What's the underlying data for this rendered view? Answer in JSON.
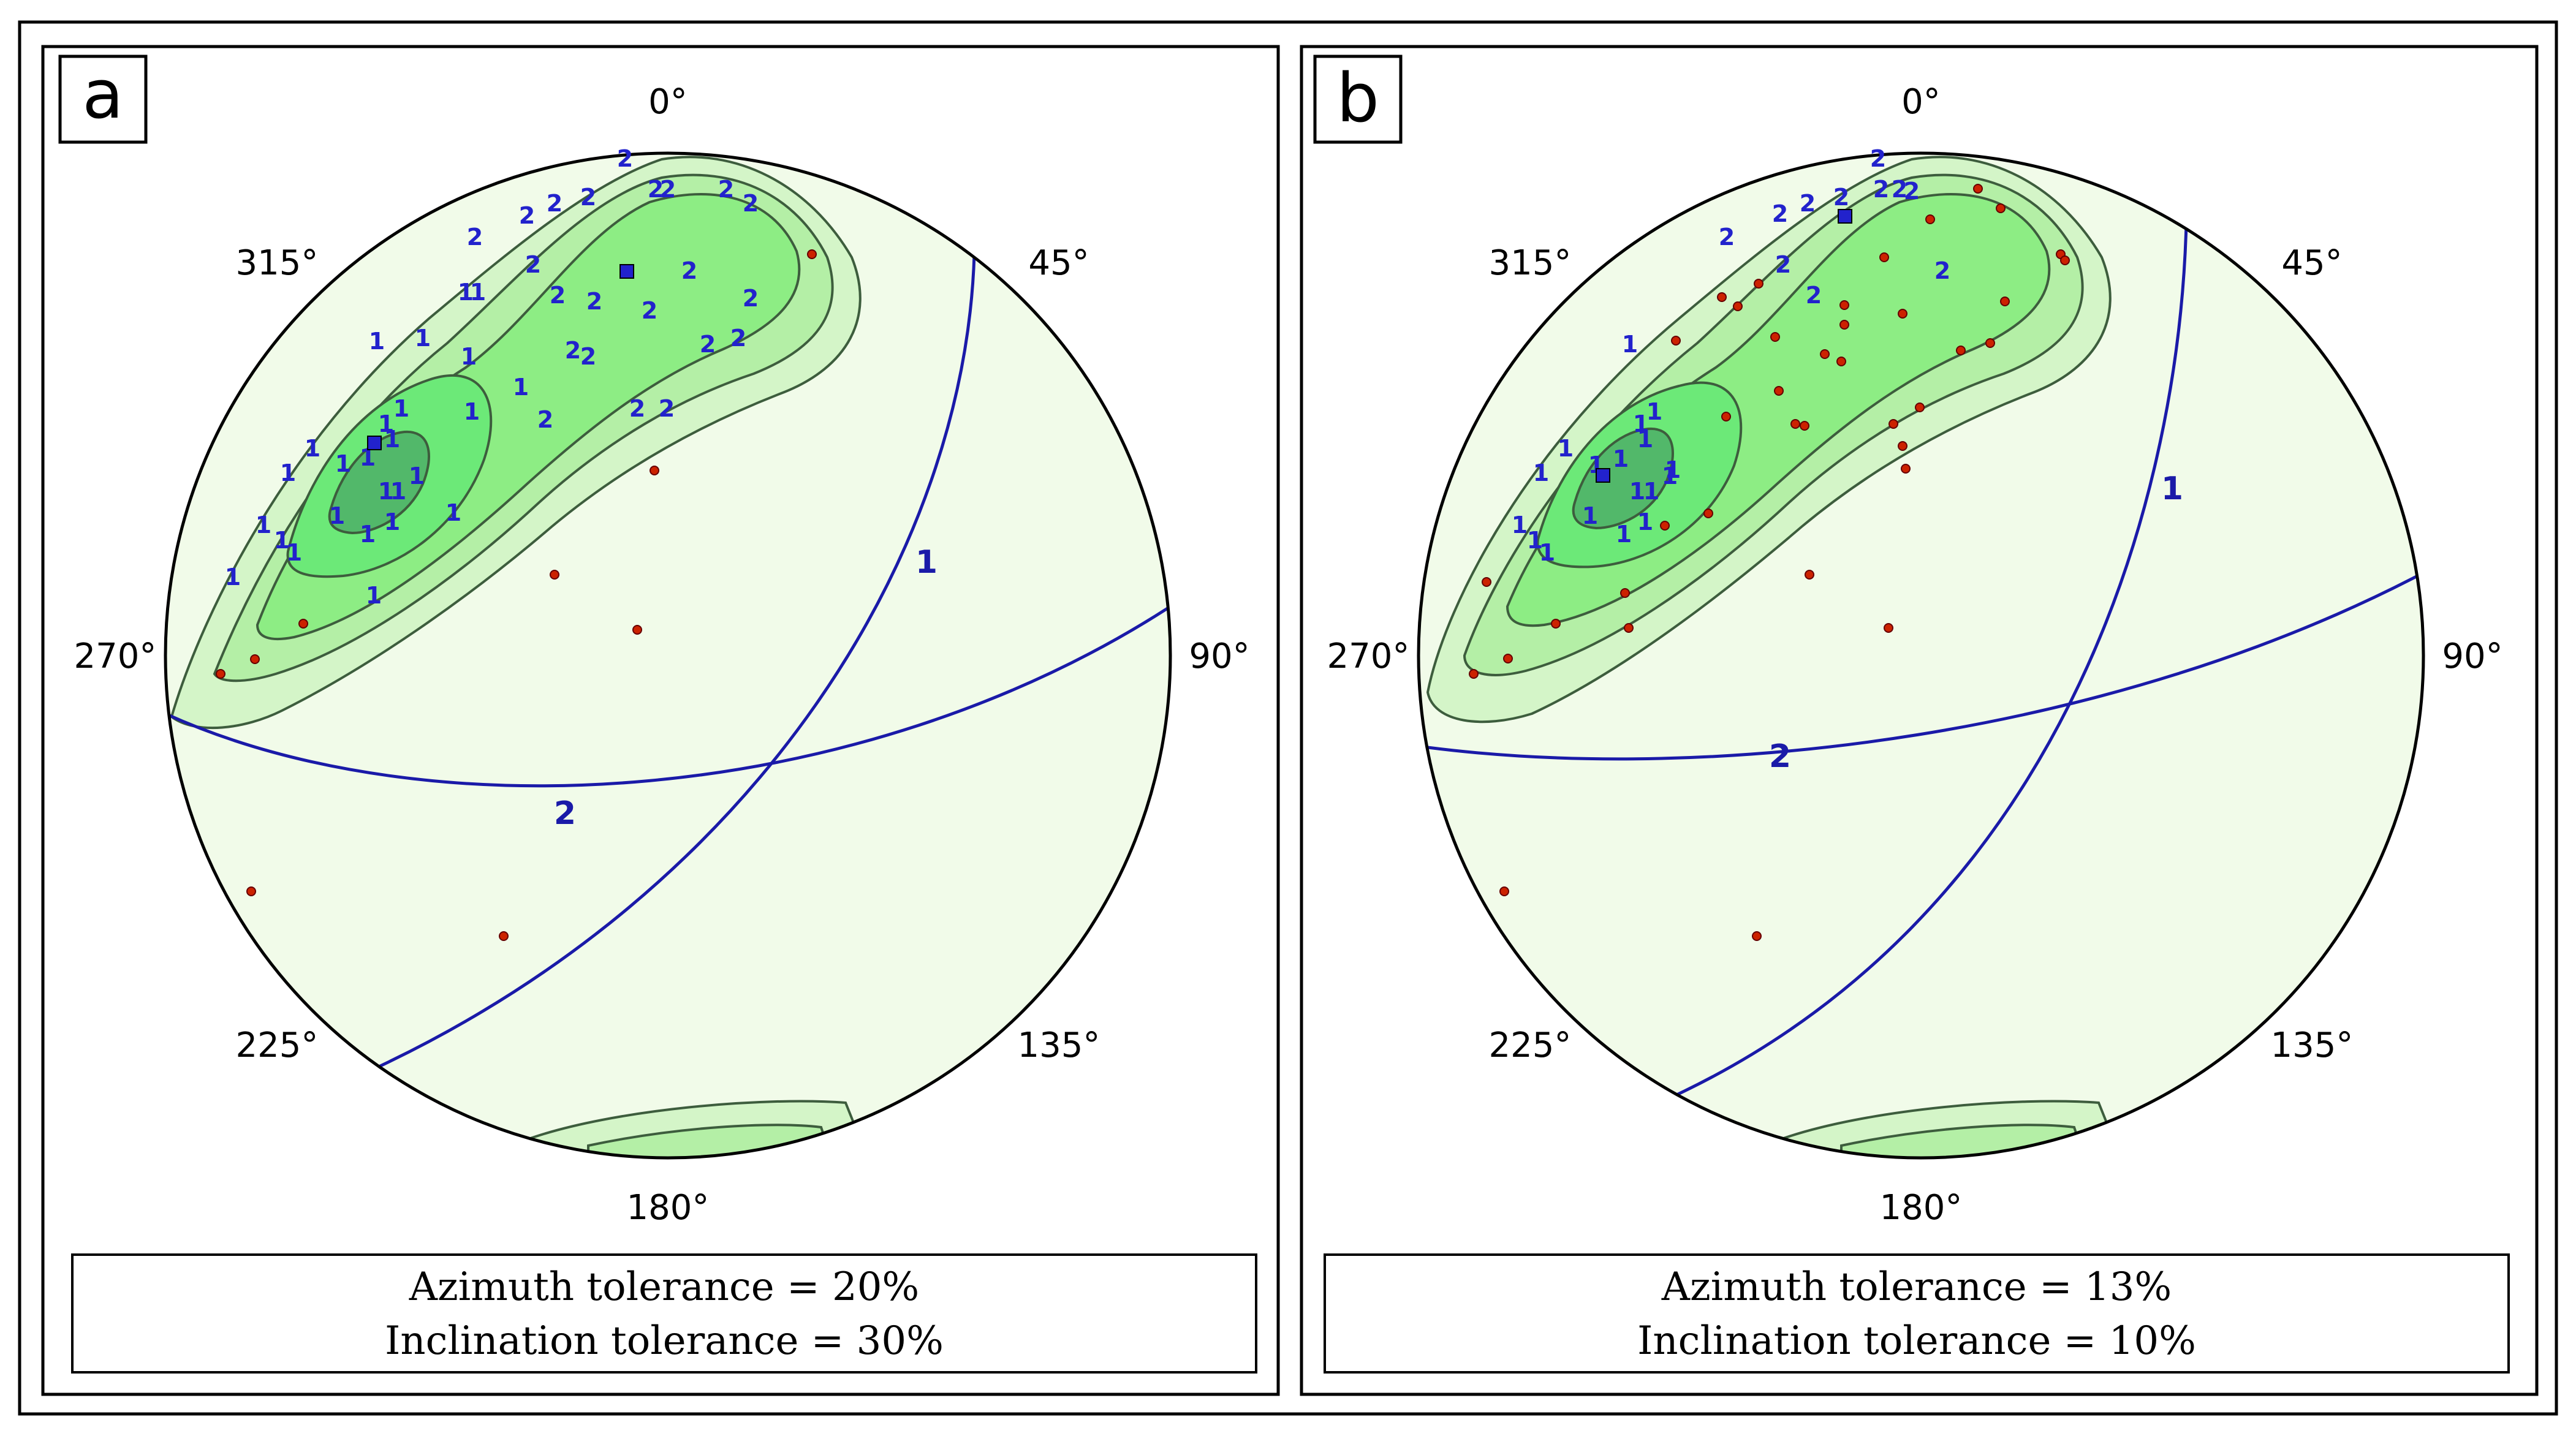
{
  "panels": [
    {
      "label": "a",
      "azimuth_text": "Azimuth tolerance = 20%",
      "inclination_text": "Inclination tolerance = 30%",
      "degree_labels": [
        "0°",
        "45°",
        "90°",
        "135°",
        "180°",
        "225°",
        "270°",
        "315°"
      ],
      "plane_labels": [
        "1",
        "2"
      ]
    },
    {
      "label": "b",
      "azimuth_text": "Azimuth tolerance = 13%",
      "inclination_text": "Inclination tolerance = 10%",
      "degree_labels": [
        "0°",
        "45°",
        "90°",
        "135°",
        "180°",
        "225°",
        "270°",
        "315°"
      ],
      "plane_labels": [
        "1",
        "2"
      ]
    }
  ],
  "colors": {
    "net_background": "#f1fbe9",
    "contour_levels": [
      "#d4f5c8",
      "#b4efa6",
      "#8ded84",
      "#6ce978",
      "#52b86a"
    ],
    "cluster_marker": "#2222cc",
    "great_circle": "#1a1aa8",
    "sample_point": "#cc2200"
  }
}
